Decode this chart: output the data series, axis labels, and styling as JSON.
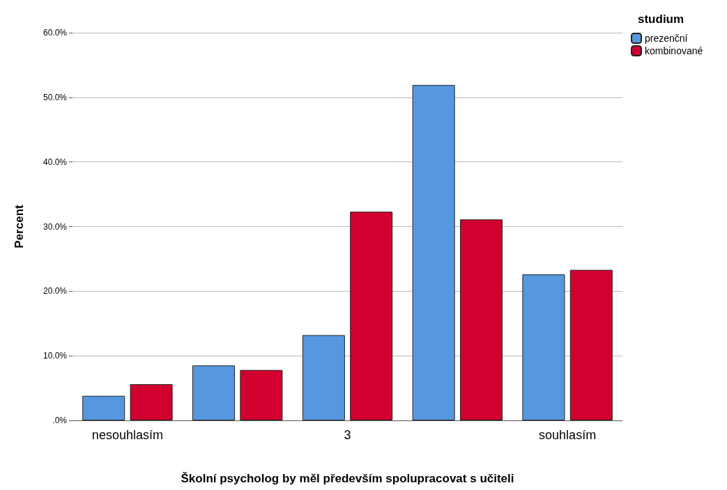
{
  "chart_data": {
    "type": "bar",
    "xlabel": "Školní psycholog by měl především spolupracovat s učiteli",
    "ylabel": "Percent",
    "legend_title": "studium",
    "categories": [
      "nesouhlasím",
      null,
      "3",
      null,
      "souhlasím"
    ],
    "series": [
      {
        "name": "prezenční",
        "color": "#5698e0",
        "values": [
          3.8,
          8.5,
          13.2,
          51.9,
          22.6
        ]
      },
      {
        "name": "kombinované",
        "color": "#d2002f",
        "values": [
          5.6,
          7.8,
          32.3,
          31.1,
          23.3
        ]
      }
    ],
    "ylim": [
      0,
      60
    ],
    "yticks": [
      {
        "value": 0,
        "label": ".0%"
      },
      {
        "value": 10,
        "label": "10.0%"
      },
      {
        "value": 20,
        "label": "20.0%"
      },
      {
        "value": 30,
        "label": "30.0%"
      },
      {
        "value": 40,
        "label": "40.0%"
      },
      {
        "value": 50,
        "label": "50.0%"
      },
      {
        "value": 60,
        "label": "60.0%"
      }
    ],
    "grid": "y",
    "legend": "top right"
  }
}
